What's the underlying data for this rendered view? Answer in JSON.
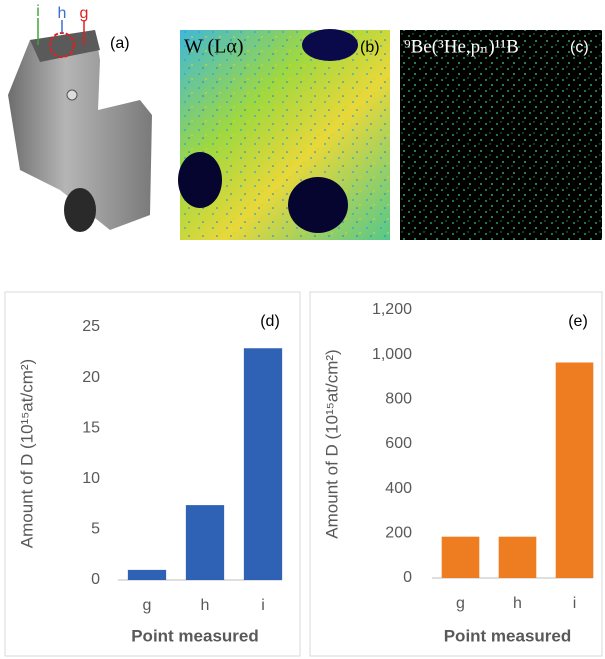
{
  "images": [
    {
      "label": "(a)",
      "markers": [
        "i",
        "h",
        "g"
      ]
    },
    {
      "label": "(b)",
      "title": "W (Lα)"
    },
    {
      "label": "(c)",
      "title": "⁹Be(³He,pₙ)¹¹B"
    }
  ],
  "chart_data": [
    {
      "type": "bar",
      "annotation": "(d)",
      "y_label": "Amount of D (10¹⁵at/cm²)",
      "x_label": "Point measured",
      "categories": [
        "g",
        "h",
        "i"
      ],
      "values": [
        1,
        7.4,
        22.9
      ],
      "color": "#2f62b5",
      "ylim": [
        0,
        25
      ],
      "yticks": [
        0,
        5,
        10,
        15,
        20,
        25
      ],
      "grid": false
    },
    {
      "type": "bar",
      "annotation": "(e)",
      "y_label": "Amount of D (10¹⁵at/cm²)",
      "x_label": "Point measured",
      "categories": [
        "g",
        "h",
        "i"
      ],
      "values": [
        185,
        185,
        965
      ],
      "color": "#ee7d22",
      "ylim": [
        0,
        1200
      ],
      "yticks": [
        0,
        200,
        400,
        600,
        800,
        {
          "value": 1000,
          "label": "1,000"
        },
        {
          "value": 1200,
          "label": "1,200"
        }
      ],
      "grid": false
    }
  ]
}
